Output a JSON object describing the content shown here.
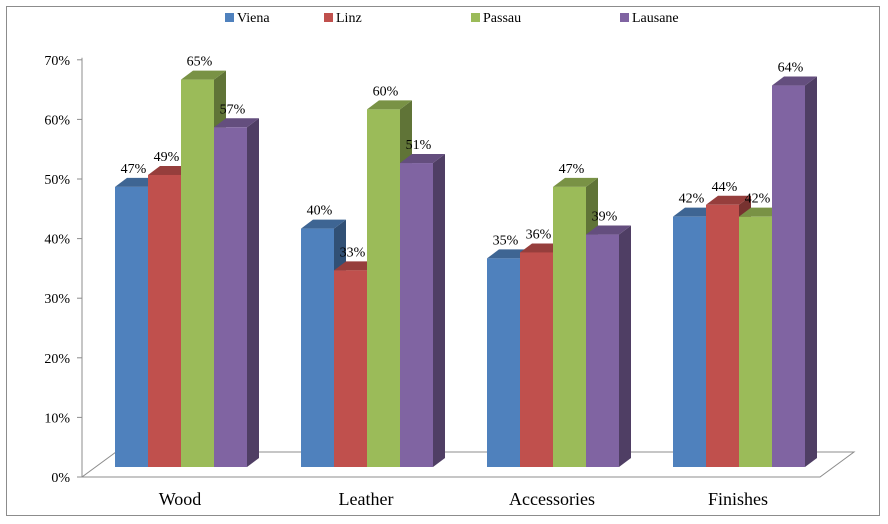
{
  "chart_data": {
    "type": "bar",
    "title": "",
    "xlabel": "",
    "ylabel": "",
    "categories": [
      "Wood",
      "Leather",
      "Accessories",
      "Finishes"
    ],
    "series": [
      {
        "name": "Viena",
        "color": "#4f81bd",
        "values": [
          47,
          40,
          35,
          42
        ],
        "labels": [
          "47%",
          "40%",
          "35%",
          "42%"
        ]
      },
      {
        "name": "Linz",
        "color": "#c0504d",
        "values": [
          49,
          33,
          36,
          44
        ],
        "labels": [
          "49%",
          "33%",
          "36%",
          "44%"
        ]
      },
      {
        "name": "Passau",
        "color": "#9bbb59",
        "values": [
          65,
          60,
          47,
          42
        ],
        "labels": [
          "65%",
          "60%",
          "47%",
          "42%"
        ]
      },
      {
        "name": "Lausane",
        "color": "#8064a2",
        "values": [
          57,
          51,
          39,
          64
        ],
        "labels": [
          "57%",
          "51%",
          "39%",
          "64%"
        ]
      }
    ],
    "ylim": [
      0,
      70
    ],
    "yticks": [
      0,
      10,
      20,
      30,
      40,
      50,
      60,
      70
    ],
    "ytick_labels": [
      "0%",
      "10%",
      "20%",
      "30%",
      "40%",
      "50%",
      "60%",
      "70%"
    ],
    "legend_position": "top",
    "style": "3d-clustered-column",
    "grid": false
  }
}
